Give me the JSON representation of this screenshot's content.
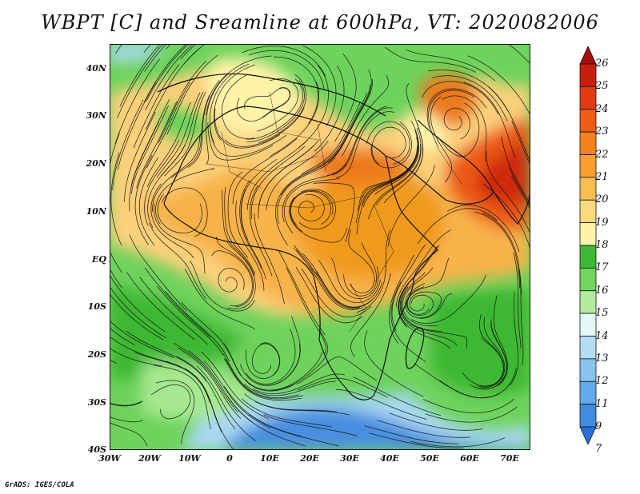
{
  "title": "WBPT [C] and Sreamline at 600hPa, VT: 2020082006",
  "credit": "GrADS: IGES/COLA",
  "map": {
    "lat_labels": [
      "40N",
      "30N",
      "20N",
      "10N",
      "EQ",
      "10S",
      "20S",
      "30S",
      "40S"
    ],
    "lon_labels": [
      "30W",
      "20W",
      "10W",
      "0",
      "10E",
      "20E",
      "30E",
      "40E",
      "50E",
      "60E",
      "70E"
    ],
    "colors": {
      "ocean_south": "#4a8fe0",
      "cool": "#a9d8f2",
      "green_light": "#a6e88f",
      "green": "#6ed35c",
      "green_dark": "#3cb832",
      "pale_yellow": "#fff3a8",
      "tan": "#fcd07a",
      "orange_light": "#f7b24a",
      "orange": "#f09a1c",
      "red_orange": "#ec5a14",
      "red": "#d02a0c"
    }
  },
  "colorbar": {
    "labels": [
      "26",
      "25",
      "24",
      "23",
      "22",
      "21",
      "20",
      "19",
      "18",
      "17",
      "16",
      "15",
      "14",
      "13",
      "12",
      "11",
      "9",
      "7"
    ],
    "colors": [
      "#a50f08",
      "#c81e0e",
      "#e23b12",
      "#f05c14",
      "#f5801e",
      "#f9a02e",
      "#fbbd52",
      "#fdd97e",
      "#fff3a8",
      "#3cb832",
      "#72d65e",
      "#b2eb9e",
      "#e6f8f6",
      "#b4ddf4",
      "#88c4ee",
      "#62aaea",
      "#3e8de2",
      "#2a6ed8"
    ]
  }
}
